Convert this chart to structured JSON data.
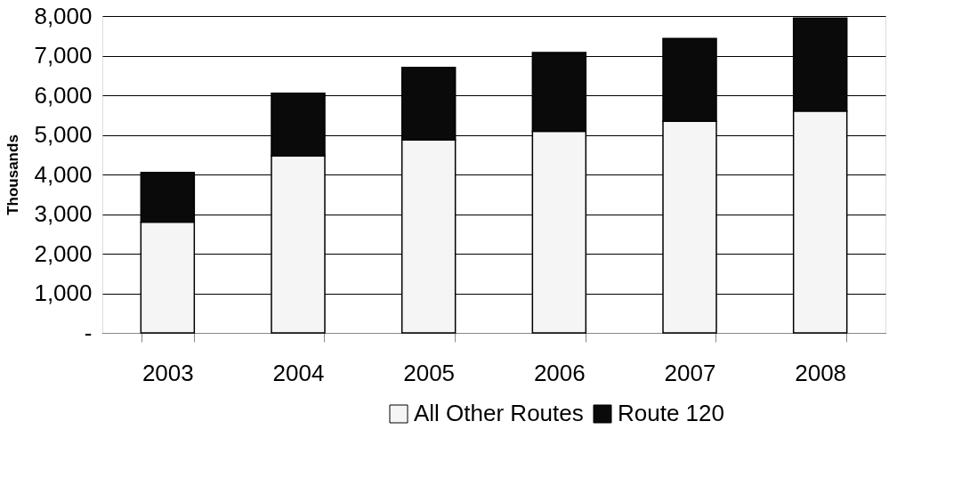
{
  "chart_data": {
    "type": "bar",
    "stacked": true,
    "ylabel": "Thousands",
    "categories": [
      "2003",
      "2004",
      "2005",
      "2006",
      "2007",
      "2008"
    ],
    "series": [
      {
        "name": "All Other Routes",
        "color": "#f5f5f5",
        "values": [
          2800,
          4470,
          4870,
          5090,
          5340,
          5600
        ]
      },
      {
        "name": "Route 120",
        "color": "#0a0a0a",
        "values": [
          1250,
          1580,
          1830,
          1990,
          2090,
          2350
        ]
      }
    ],
    "ylim": [
      0,
      8000
    ],
    "yticks": [
      {
        "value": 0,
        "label": "-"
      },
      {
        "value": 1000,
        "label": "1,000"
      },
      {
        "value": 2000,
        "label": "2,000"
      },
      {
        "value": 3000,
        "label": "3,000"
      },
      {
        "value": 4000,
        "label": "4,000"
      },
      {
        "value": 5000,
        "label": "5,000"
      },
      {
        "value": 6000,
        "label": "6,000"
      },
      {
        "value": 7000,
        "label": "7,000"
      },
      {
        "value": 8000,
        "label": "8,000"
      }
    ],
    "grid": "y",
    "legend": "bottom"
  }
}
